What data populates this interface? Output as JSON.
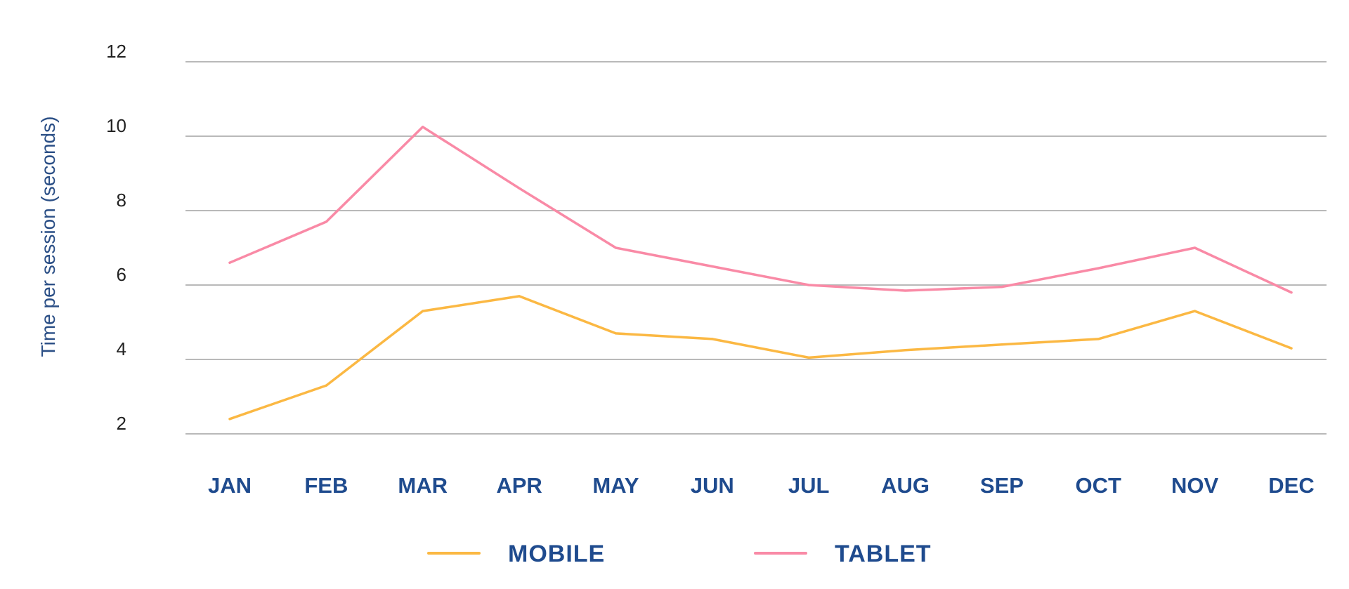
{
  "chart_data": {
    "type": "line",
    "title": "",
    "xlabel": "",
    "ylabel": "Time per session (seconds)",
    "categories": [
      "JAN",
      "FEB",
      "MAR",
      "APR",
      "MAY",
      "JUN",
      "JUL",
      "AUG",
      "SEP",
      "OCT",
      "NOV",
      "DEC"
    ],
    "y_ticks": [
      2,
      4,
      6,
      8,
      10,
      12
    ],
    "ylim": [
      2,
      12
    ],
    "grid": true,
    "legend_position": "bottom",
    "series": [
      {
        "name": "MOBILE",
        "color": "#fbb843",
        "values": [
          2.4,
          3.3,
          5.3,
          5.7,
          4.7,
          4.55,
          4.05,
          4.25,
          4.4,
          4.55,
          5.3,
          4.3
        ]
      },
      {
        "name": "TABLET",
        "color": "#f98aa6",
        "values": [
          6.6,
          7.7,
          10.25,
          8.6,
          7.0,
          6.5,
          6.0,
          5.85,
          5.95,
          6.45,
          7.0,
          5.8
        ]
      }
    ]
  }
}
